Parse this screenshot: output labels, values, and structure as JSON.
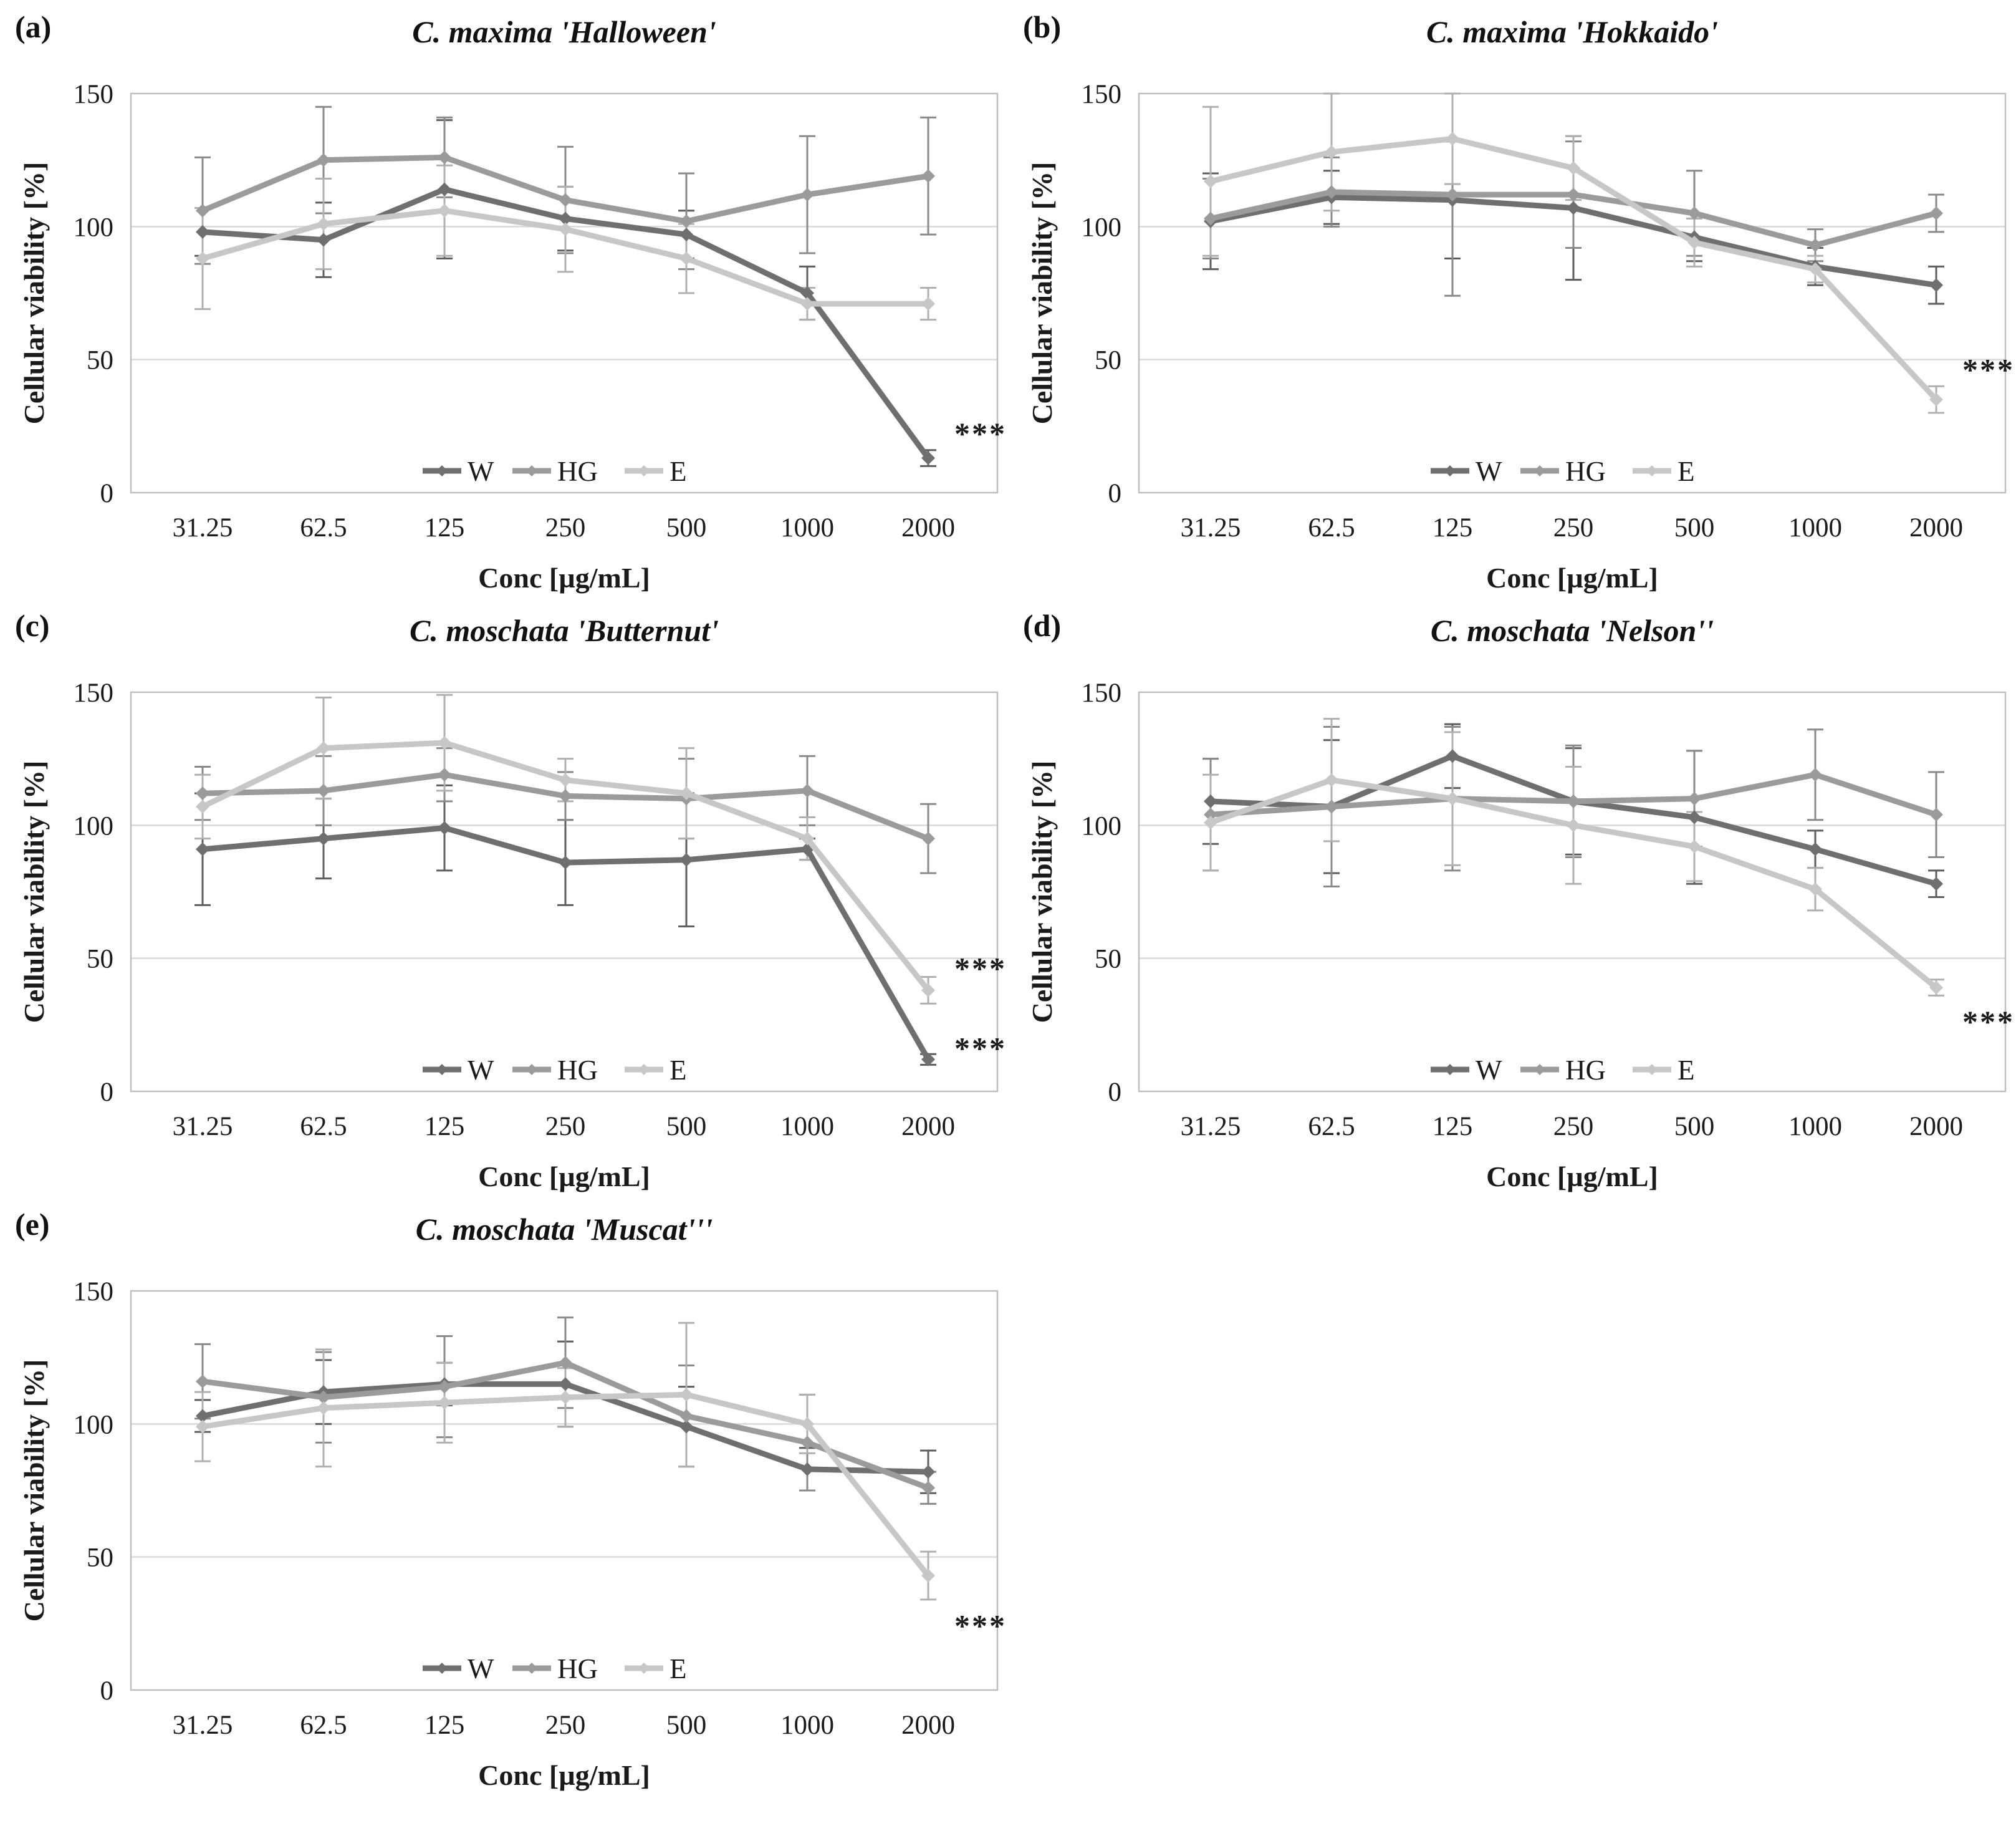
{
  "figure": {
    "background": "#ffffff",
    "grid_color": "#d9d9d9",
    "border_color": "#bfbfbf",
    "text_color": "#1a1a1a",
    "significance_marker": "***",
    "legend_labels": [
      "W",
      "HG",
      "E"
    ],
    "series_colors": {
      "W": "#6f6f6f",
      "HG": "#9b9b9b",
      "E": "#c7c7c7"
    }
  },
  "chart_data": [
    {
      "type": "line",
      "panel_label": "(a)",
      "title": "C. maxima 'Halloween'",
      "xlabel": "Conc [µg/mL]",
      "ylabel": "Cellular viability [%]",
      "categories": [
        "31.25",
        "62.5",
        "125",
        "250",
        "500",
        "1000",
        "2000"
      ],
      "ylim": [
        0,
        150
      ],
      "yticks": [
        0,
        50,
        100,
        150
      ],
      "grid": true,
      "legend_position": "bottom-center-inside",
      "series": [
        {
          "name": "W",
          "color": "#6f6f6f",
          "error_color": "#5e5e5e",
          "values": [
            98,
            95,
            114,
            103,
            97,
            75,
            13
          ],
          "errors": [
            9,
            14,
            26,
            12,
            9,
            10,
            3
          ]
        },
        {
          "name": "HG",
          "color": "#9b9b9b",
          "error_color": "#8a8a8a",
          "values": [
            106,
            125,
            126,
            110,
            102,
            112,
            119
          ],
          "errors": [
            20,
            20,
            15,
            20,
            18,
            22,
            22
          ]
        },
        {
          "name": "E",
          "color": "#c7c7c7",
          "error_color": "#b0b0b0",
          "values": [
            88,
            101,
            106,
            99,
            88,
            71,
            71
          ],
          "errors": [
            19,
            17,
            17,
            16,
            13,
            6,
            6
          ]
        }
      ],
      "annotations": [
        {
          "text": "***",
          "x_index": 6,
          "y": 22,
          "color": "#4a4a4a"
        }
      ]
    },
    {
      "type": "line",
      "panel_label": "(b)",
      "title": "C. maxima 'Hokkaido'",
      "xlabel": "Conc [µg/mL]",
      "ylabel": "Cellular viability [%]",
      "categories": [
        "31.25",
        "62.5",
        "125",
        "250",
        "500",
        "1000",
        "2000"
      ],
      "ylim": [
        0,
        150
      ],
      "yticks": [
        0,
        50,
        100,
        150
      ],
      "grid": true,
      "legend_position": "bottom-center-inside",
      "series": [
        {
          "name": "W",
          "color": "#6f6f6f",
          "error_color": "#5e5e5e",
          "values": [
            102,
            111,
            110,
            107,
            96,
            85,
            78
          ],
          "errors": [
            18,
            10,
            22,
            27,
            9,
            7,
            7
          ]
        },
        {
          "name": "HG",
          "color": "#9b9b9b",
          "error_color": "#8a8a8a",
          "values": [
            103,
            113,
            112,
            112,
            105,
            93,
            105
          ],
          "errors": [
            15,
            13,
            38,
            20,
            16,
            6,
            7
          ]
        },
        {
          "name": "E",
          "color": "#c7c7c7",
          "error_color": "#b0b0b0",
          "values": [
            117,
            128,
            133,
            122,
            94,
            84,
            35
          ],
          "errors": [
            28,
            22,
            17,
            12,
            9,
            5,
            5
          ]
        }
      ],
      "annotations": [
        {
          "text": "***",
          "x_index": 6,
          "y": 46,
          "color": "#4a4a4a"
        }
      ]
    },
    {
      "type": "line",
      "panel_label": "(c)",
      "title": "C. moschata 'Butternut'",
      "xlabel": "Conc [µg/mL]",
      "ylabel": "Cellular viability [%]",
      "categories": [
        "31.25",
        "62.5",
        "125",
        "250",
        "500",
        "1000",
        "2000"
      ],
      "ylim": [
        0,
        150
      ],
      "yticks": [
        0,
        50,
        100,
        150
      ],
      "grid": true,
      "legend_position": "bottom-center-inside",
      "series": [
        {
          "name": "W",
          "color": "#6f6f6f",
          "error_color": "#5e5e5e",
          "values": [
            91,
            95,
            99,
            86,
            87,
            91,
            12
          ],
          "errors": [
            21,
            15,
            16,
            16,
            25,
            4,
            2
          ]
        },
        {
          "name": "HG",
          "color": "#9b9b9b",
          "error_color": "#8a8a8a",
          "values": [
            112,
            113,
            119,
            111,
            110,
            113,
            95
          ],
          "errors": [
            10,
            13,
            10,
            9,
            15,
            13,
            13
          ]
        },
        {
          "name": "E",
          "color": "#c7c7c7",
          "error_color": "#b0b0b0",
          "values": [
            107,
            129,
            131,
            117,
            112,
            95,
            38
          ],
          "errors": [
            12,
            19,
            18,
            8,
            17,
            8,
            5
          ]
        }
      ],
      "annotations": [
        {
          "text": "***",
          "x_index": 6,
          "y": 46,
          "color": "#8f8f8f"
        },
        {
          "text": "***",
          "x_index": 6,
          "y": 16,
          "color": "#4a4a4a"
        }
      ]
    },
    {
      "type": "line",
      "panel_label": "(d)",
      "title": "C. moschata 'Nelson''",
      "xlabel": "Conc [µg/mL]",
      "ylabel": "Cellular viability [%]",
      "categories": [
        "31.25",
        "62.5",
        "125",
        "250",
        "500",
        "1000",
        "2000"
      ],
      "ylim": [
        0,
        150
      ],
      "yticks": [
        0,
        50,
        100,
        150
      ],
      "grid": true,
      "legend_position": "bottom-center-inside",
      "series": [
        {
          "name": "W",
          "color": "#6f6f6f",
          "error_color": "#5e5e5e",
          "values": [
            109,
            107,
            126,
            109,
            103,
            91,
            78
          ],
          "errors": [
            16,
            25,
            12,
            20,
            25,
            7,
            5
          ]
        },
        {
          "name": "HG",
          "color": "#9b9b9b",
          "error_color": "#8a8a8a",
          "values": [
            104,
            107,
            110,
            109,
            110,
            119,
            104
          ],
          "errors": [
            21,
            30,
            27,
            21,
            18,
            17,
            16
          ]
        },
        {
          "name": "E",
          "color": "#c7c7c7",
          "error_color": "#b0b0b0",
          "values": [
            101,
            117,
            110,
            100,
            92,
            76,
            39
          ],
          "errors": [
            18,
            23,
            25,
            22,
            13,
            8,
            3
          ]
        }
      ],
      "annotations": [
        {
          "text": "***",
          "x_index": 6,
          "y": 26,
          "color": "#4a4a4a"
        }
      ]
    },
    {
      "type": "line",
      "panel_label": "(e)",
      "title": "C. moschata 'Muscat'''",
      "xlabel": "Conc [µg/mL]",
      "ylabel": "Cellular viability [%]",
      "categories": [
        "31.25",
        "62.5",
        "125",
        "250",
        "500",
        "1000",
        "2000"
      ],
      "ylim": [
        0,
        150
      ],
      "yticks": [
        0,
        50,
        100,
        150
      ],
      "grid": true,
      "legend_position": "bottom-center-inside",
      "series": [
        {
          "name": "W",
          "color": "#6f6f6f",
          "error_color": "#5e5e5e",
          "values": [
            103,
            112,
            115,
            115,
            99,
            83,
            82
          ],
          "errors": [
            6,
            12,
            8,
            16,
            15,
            8,
            8
          ]
        },
        {
          "name": "HG",
          "color": "#9b9b9b",
          "error_color": "#8a8a8a",
          "values": [
            116,
            110,
            114,
            123,
            103,
            93,
            76
          ],
          "errors": [
            14,
            17,
            19,
            17,
            19,
            18,
            6
          ]
        },
        {
          "name": "E",
          "color": "#c7c7c7",
          "error_color": "#b0b0b0",
          "values": [
            99,
            106,
            108,
            110,
            111,
            100,
            43
          ],
          "errors": [
            13,
            22,
            15,
            11,
            27,
            11,
            9
          ]
        }
      ],
      "annotations": [
        {
          "text": "***",
          "x_index": 6,
          "y": 24,
          "color": "#4a4a4a"
        }
      ]
    }
  ]
}
